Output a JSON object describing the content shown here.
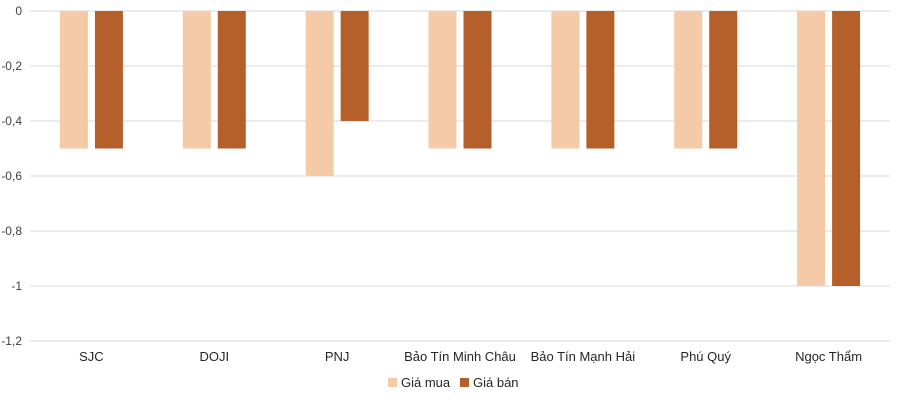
{
  "chart_data": {
    "type": "bar",
    "categories": [
      "SJC",
      "DOJI",
      "PNJ",
      "Bảo Tín Minh Châu",
      "Bảo Tín Mạnh Hải",
      "Phú Quý",
      "Ngọc Thẩm"
    ],
    "series": [
      {
        "name": "Giá mua",
        "values": [
          -0.5,
          -0.5,
          -0.6,
          -0.5,
          -0.5,
          -0.5,
          -1.0
        ],
        "color": "#f5cba7"
      },
      {
        "name": "Giá bán",
        "values": [
          -0.5,
          -0.5,
          -0.4,
          -0.5,
          -0.5,
          -0.5,
          -1.0
        ],
        "color": "#b5602a"
      }
    ],
    "yticks": [
      "0",
      "-0,2",
      "-0,4",
      "-0,6",
      "-0,8",
      "-1",
      "-1,2"
    ],
    "ylim": [
      -1.2,
      0
    ],
    "grid": true,
    "legend_position": "bottom"
  }
}
